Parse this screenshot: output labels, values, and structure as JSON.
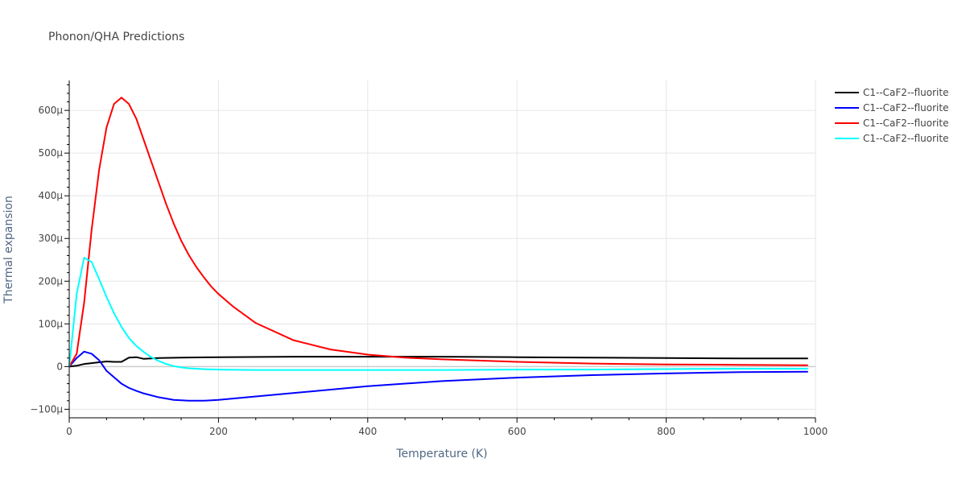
{
  "chart_data": {
    "type": "line",
    "title": "Phonon/QHA Predictions",
    "xlabel": "Temperature (K)",
    "ylabel": "Thermal expansion",
    "xlim": [
      0,
      1000
    ],
    "ylim": [
      -0.00012,
      0.00067
    ],
    "x_ticks": [
      0,
      200,
      400,
      600,
      800,
      1000
    ],
    "x_tick_labels": [
      "0",
      "200",
      "400",
      "600",
      "800",
      "1000"
    ],
    "y_ticks": [
      -0.0001,
      0,
      0.0001,
      0.0002,
      0.0003,
      0.0004,
      0.0005,
      0.0006
    ],
    "y_tick_labels": [
      "−100μ",
      "0",
      "100μ",
      "200μ",
      "300μ",
      "400μ",
      "500μ",
      "600μ"
    ],
    "grid": true,
    "legend_position": "top-right",
    "series": [
      {
        "name": "C1--CaF2--fluorite",
        "color": "#000000",
        "x": [
          0,
          10,
          20,
          30,
          40,
          50,
          60,
          70,
          80,
          90,
          100,
          120,
          150,
          200,
          300,
          400,
          500,
          600,
          700,
          800,
          900,
          990
        ],
        "y": [
          0,
          2e-06,
          6e-06,
          8e-06,
          1e-05,
          1.2e-05,
          1.1e-05,
          1.1e-05,
          2.1e-05,
          2.2e-05,
          1.8e-05,
          2e-05,
          2.1e-05,
          2.2e-05,
          2.3e-05,
          2.3e-05,
          2.3e-05,
          2.2e-05,
          2.1e-05,
          2e-05,
          1.9e-05,
          1.9e-05
        ]
      },
      {
        "name": "C1--CaF2--fluorite",
        "color": "#0000ff",
        "x": [
          0,
          10,
          20,
          30,
          40,
          50,
          60,
          70,
          80,
          90,
          100,
          120,
          140,
          160,
          180,
          200,
          250,
          300,
          400,
          500,
          600,
          700,
          800,
          900,
          990
        ],
        "y": [
          0,
          2e-05,
          3.5e-05,
          3e-05,
          1.5e-05,
          -1e-05,
          -2.5e-05,
          -4e-05,
          -5e-05,
          -5.7e-05,
          -6.3e-05,
          -7.2e-05,
          -7.8e-05,
          -8e-05,
          -8e-05,
          -7.8e-05,
          -7e-05,
          -6.2e-05,
          -4.6e-05,
          -3.4e-05,
          -2.6e-05,
          -2e-05,
          -1.6e-05,
          -1.3e-05,
          -1.2e-05
        ]
      },
      {
        "name": "C1--CaF2--fluorite",
        "color": "#ff0000",
        "x": [
          0,
          10,
          20,
          30,
          40,
          50,
          60,
          70,
          80,
          90,
          100,
          110,
          120,
          130,
          140,
          150,
          160,
          170,
          180,
          190,
          200,
          220,
          250,
          300,
          350,
          400,
          450,
          500,
          600,
          700,
          800,
          900,
          990
        ],
        "y": [
          0,
          3e-05,
          0.00015,
          0.00032,
          0.00046,
          0.00056,
          0.000615,
          0.00063,
          0.000615,
          0.00058,
          0.00053,
          0.00048,
          0.00043,
          0.00038,
          0.000335,
          0.000295,
          0.000262,
          0.000234,
          0.00021,
          0.000188,
          0.00017,
          0.00014,
          0.000102,
          6.2e-05,
          4e-05,
          2.8e-05,
          2.1e-05,
          1.7e-05,
          1.1e-05,
          7e-06,
          5e-06,
          4e-06,
          3e-06
        ]
      },
      {
        "name": "C1--CaF2--fluorite",
        "color": "#00ffff",
        "x": [
          0,
          10,
          20,
          30,
          40,
          50,
          60,
          70,
          80,
          90,
          100,
          110,
          120,
          130,
          140,
          150,
          160,
          170,
          180,
          200,
          250,
          300,
          400,
          500,
          600,
          700,
          800,
          900,
          990
        ],
        "y": [
          0,
          0.00017,
          0.000255,
          0.000245,
          0.000205,
          0.000163,
          0.000125,
          9.3e-05,
          6.7e-05,
          4.8e-05,
          3.4e-05,
          2.2e-05,
          1.3e-05,
          6e-06,
          1e-06,
          -2e-06,
          -4e-06,
          -5e-06,
          -6e-06,
          -7e-06,
          -8e-06,
          -8e-06,
          -8e-06,
          -8e-06,
          -7e-06,
          -7e-06,
          -6e-06,
          -5e-06,
          -5e-06
        ]
      }
    ]
  }
}
